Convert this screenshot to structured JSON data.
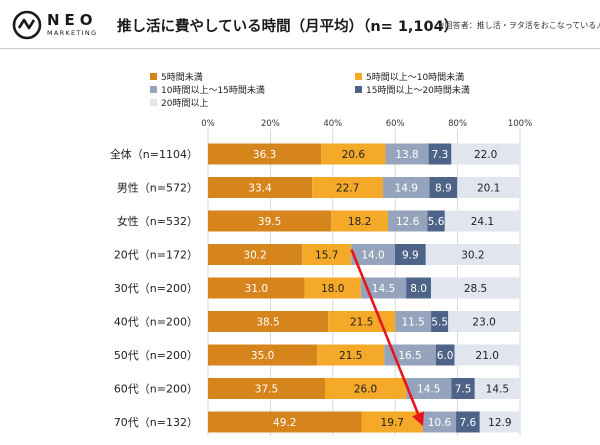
{
  "brand": {
    "name": "NEO",
    "sub": "MARKETING"
  },
  "header": {
    "title": "推し活に費やしている時間（月平均）（n= 1,104）",
    "note": "※回答者：推し活・ヲタ活をおこなっている人"
  },
  "colors": {
    "s1": "#D6841C",
    "s2": "#F5A928",
    "s3": "#95A4BC",
    "s4": "#4D6488",
    "s5": "#E1E5EE",
    "arrow": "#E8141D"
  },
  "chart_data": {
    "type": "bar",
    "orientation": "horizontal",
    "stacked": true,
    "xlim": [
      0,
      100
    ],
    "x_ticks": [
      "0%",
      "20%",
      "40%",
      "60%",
      "80%",
      "100%"
    ],
    "grid": true,
    "legend_position": "top-left",
    "categories": [
      "全体（n=1104）",
      "男性（n=572）",
      "女性（n=532）",
      "20代（n=172）",
      "30代（n=200）",
      "40代（n=200）",
      "50代（n=200）",
      "60代（n=200）",
      "70代（n=132）"
    ],
    "series": [
      {
        "name": "5時間未満",
        "values": [
          36.3,
          33.4,
          39.5,
          30.2,
          31.0,
          38.5,
          35.0,
          37.5,
          49.2
        ],
        "labels": [
          "36.3",
          "33.4",
          "39.5",
          "30.2",
          "31.0",
          "38.5",
          "35.0",
          "37.5",
          "49.2"
        ]
      },
      {
        "name": "5時間以上〜10時間未満",
        "values": [
          20.6,
          22.7,
          18.2,
          15.7,
          18.0,
          21.5,
          21.5,
          26.0,
          19.7
        ],
        "labels": [
          "20.6",
          "22.7",
          "18.2",
          "15.7",
          "18.0",
          "21.5",
          "21.5",
          "26.0",
          "19.7"
        ]
      },
      {
        "name": "10時間以上〜15時間未満",
        "values": [
          13.8,
          14.9,
          12.6,
          14.0,
          14.5,
          11.5,
          16.5,
          14.5,
          10.6
        ],
        "labels": [
          "13.8",
          "14.9",
          "12.6",
          "14.0",
          "14.5",
          "11.5",
          "16.5",
          "14.5",
          "10.6"
        ]
      },
      {
        "name": "15時間以上〜20時間未満",
        "values": [
          7.3,
          8.9,
          5.6,
          9.9,
          8.0,
          5.5,
          6.0,
          7.5,
          7.6
        ],
        "labels": [
          "7.3",
          "8.9",
          "5.6",
          "9.9",
          "8.0",
          "5.5",
          "6.0",
          "7.5",
          "7.6"
        ]
      },
      {
        "name": "20時間以上",
        "values": [
          22.0,
          20.1,
          24.1,
          30.2,
          28.5,
          23.0,
          21.0,
          14.5,
          12.9
        ],
        "labels": [
          "22.0",
          "20.1",
          "24.1",
          "30.2",
          "28.5",
          "23.0",
          "21.0",
          "14.5",
          "12.9"
        ]
      }
    ],
    "annotation": {
      "type": "arrow",
      "color": "red",
      "from": {
        "category": "20代（n=172）",
        "x": 46
      },
      "to": {
        "category": "70代（n=132）",
        "x": 68.9
      }
    }
  }
}
